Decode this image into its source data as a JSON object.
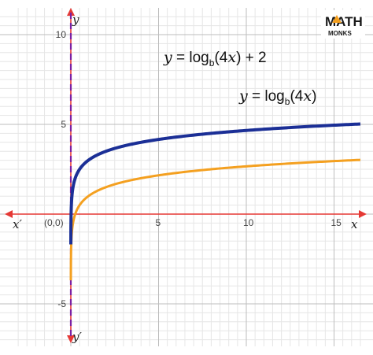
{
  "chart_data": {
    "type": "line",
    "xlim": [
      -3,
      16.5
    ],
    "ylim": [
      -7,
      11
    ],
    "x_ticks": [
      5,
      10,
      15
    ],
    "x_tick_labels": [
      "5",
      "10",
      "15"
    ],
    "y_ticks": [
      -5,
      5,
      10
    ],
    "y_tick_labels": [
      "-5",
      "5",
      "10"
    ],
    "origin_label": "(0,0)",
    "x_axis_name": "x",
    "x_axis_name_neg": "x′",
    "y_axis_name": "y",
    "y_axis_name_neg": "y′",
    "grid": true,
    "grid_minor_step": 0.5,
    "grid_major_step": 5,
    "asymptote_x": 0,
    "base": 4,
    "series": [
      {
        "name": "y = log_b(4x) + 2",
        "label_parts": {
          "y": "y",
          "eq": " = log",
          "sub": "b",
          "arg": "(4",
          "x": "x",
          "tail": ") + 2"
        },
        "color": "#1b2f96",
        "shift": 2
      },
      {
        "name": "y = log_b(4x)",
        "label_parts": {
          "y": "y",
          "eq": " = log",
          "sub": "b",
          "arg": "(4",
          "x": "x",
          "tail": ")"
        },
        "color": "#f4a020",
        "shift": 0
      }
    ],
    "colors": {
      "axis": "#e53935",
      "asymptote": "#7b1fa2",
      "grid_major": "#bdbdbd",
      "grid_minor": "#e6e6e6"
    }
  },
  "logo": {
    "line1": "MATH",
    "line2": "MONKS",
    "accent": "#f4a020",
    "text_color": "#1a1a1a"
  }
}
